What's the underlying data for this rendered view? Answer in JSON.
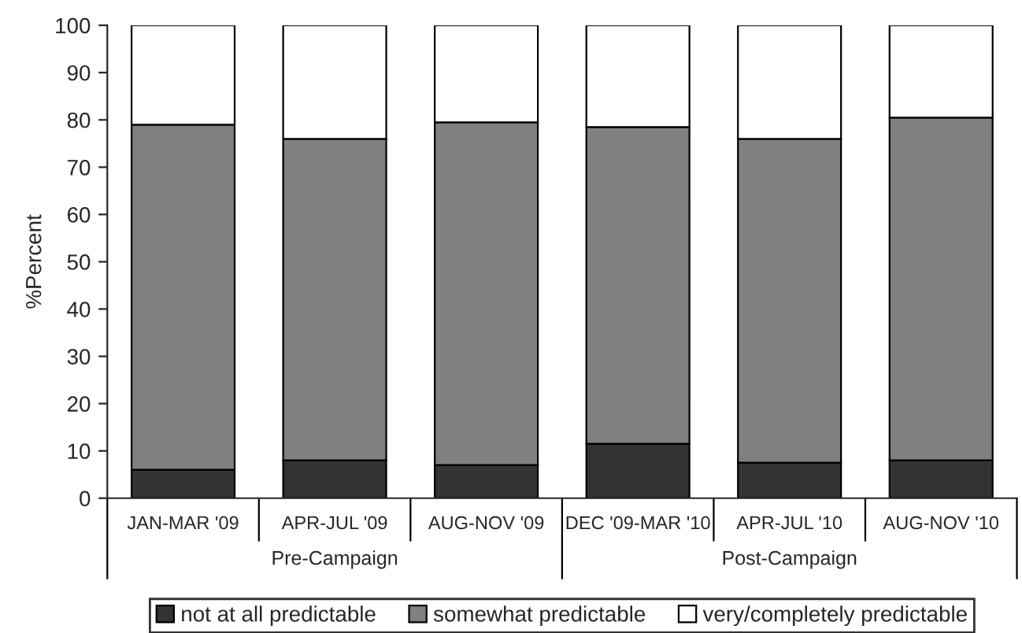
{
  "chart_data": {
    "type": "bar",
    "stacked": true,
    "ylabel": "%Percent",
    "categories": [
      "JAN-MAR '09",
      "APR-JUL '09",
      "AUG-NOV '09",
      "DEC '09-MAR '10",
      "APR-JUL '10",
      "AUG-NOV '10"
    ],
    "series": [
      {
        "name": "not at all predictable",
        "color": "#333333",
        "values": [
          6,
          8,
          7,
          11.5,
          7.5,
          8
        ]
      },
      {
        "name": "somewhat predictable",
        "color": "#808080",
        "values": [
          73,
          68,
          72.5,
          67,
          68.5,
          72.5
        ]
      },
      {
        "name": "very/completely predictable",
        "color": "#ffffff",
        "values": [
          21,
          24,
          20.5,
          21.5,
          24,
          19.5
        ]
      }
    ],
    "ylim": [
      0,
      100
    ],
    "yticks": [
      0,
      10,
      20,
      30,
      40,
      50,
      60,
      70,
      80,
      90,
      100
    ],
    "annotations": [
      "Pre-Campaign",
      "Post-Campaign"
    ],
    "grid": false,
    "legend": "bottom"
  }
}
